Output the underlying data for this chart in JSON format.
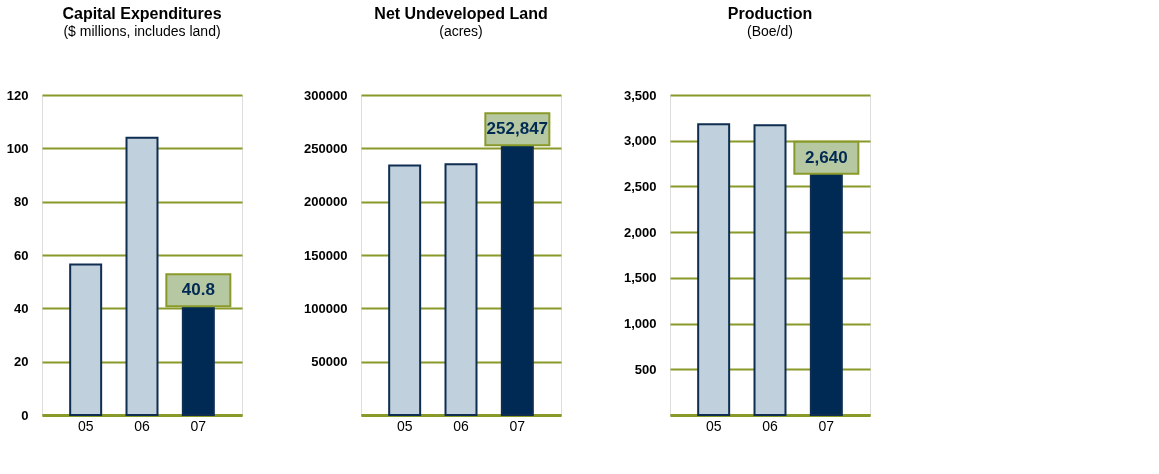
{
  "chart_data": [
    {
      "type": "bar",
      "title": "Capital Expenditures",
      "subtitle": "($ millions, includes land)",
      "categories": [
        "05",
        "06",
        "07"
      ],
      "values": [
        56.4,
        104,
        40.8
      ],
      "colors": [
        "#c0d0dc",
        "#c0d0dc",
        "#002a54"
      ],
      "value_labels": [
        null,
        null,
        "40.8"
      ],
      "ylim": [
        0,
        120
      ],
      "yticks": [
        0,
        20,
        40,
        60,
        80,
        100,
        120
      ],
      "grid": "y",
      "legend": false
    },
    {
      "type": "bar",
      "title": "Net Undeveloped Land",
      "subtitle": "(acres)",
      "categories": [
        "05",
        "06",
        "07"
      ],
      "values": [
        234000,
        235000,
        252847
      ],
      "colors": [
        "#c0d0dc",
        "#c0d0dc",
        "#002a54"
      ],
      "value_labels": [
        null,
        null,
        "252,847"
      ],
      "ylim": [
        0,
        300000
      ],
      "yticks": [
        {
          "value": 0,
          "label": null
        },
        50000,
        100000,
        150000,
        200000,
        250000,
        300000
      ],
      "grid": "y",
      "legend": false
    },
    {
      "type": "bar",
      "title": "Production",
      "subtitle": "(Boe/d)",
      "categories": [
        "05",
        "06",
        "07"
      ],
      "values": [
        3180,
        3170,
        2640
      ],
      "colors": [
        "#c0d0dc",
        "#c0d0dc",
        "#002a54"
      ],
      "value_labels": [
        null,
        null,
        "2,640"
      ],
      "ylim": [
        0,
        3500
      ],
      "yticks": [
        {
          "value": 0,
          "label": null
        },
        {
          "value": 500,
          "label": "500"
        },
        {
          "value": 1000,
          "label": "1,000"
        },
        {
          "value": 1500,
          "label": "1,500"
        },
        {
          "value": 2000,
          "label": "2,000"
        },
        {
          "value": 2500,
          "label": "2,500"
        },
        {
          "value": 3000,
          "label": "3,000"
        },
        {
          "value": 3500,
          "label": "3,500"
        }
      ],
      "grid": "y",
      "legend": false
    }
  ]
}
